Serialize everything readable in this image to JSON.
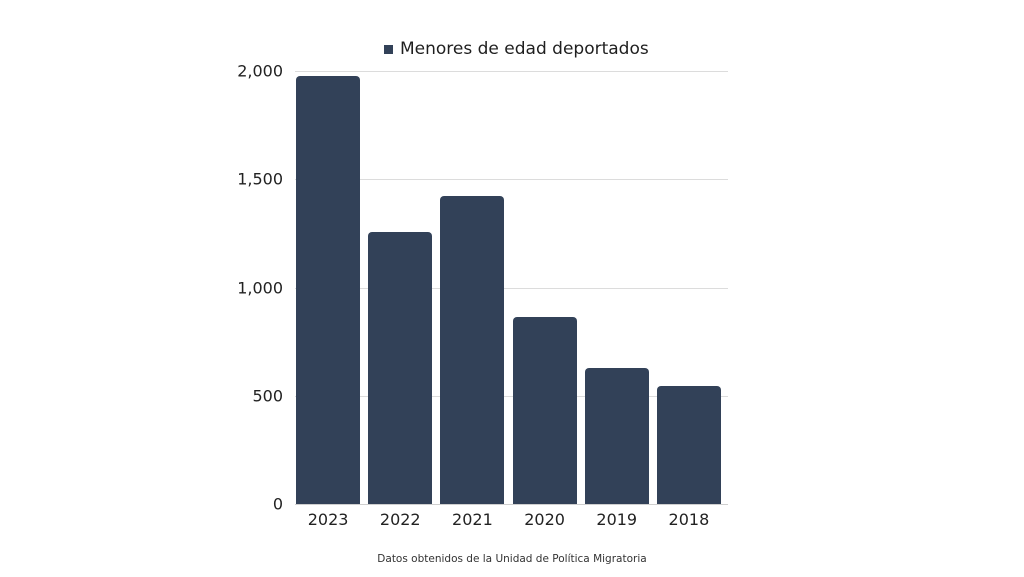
{
  "chart_data": {
    "type": "bar",
    "title": "",
    "categories": [
      "2023",
      "2022",
      "2021",
      "2020",
      "2019",
      "2018"
    ],
    "series": [
      {
        "name": "Menores de edad deportados",
        "values": [
          1977,
          1256,
          1423,
          864,
          628,
          545
        ],
        "color": "#324158"
      }
    ],
    "xlabel": "",
    "ylabel": "",
    "ylim": [
      0,
      2000
    ],
    "yticks": [
      0,
      500,
      1000,
      1500,
      2000
    ],
    "ytick_labels": [
      "0",
      "500",
      "1,000",
      "1,500",
      "2,000"
    ],
    "grid": true,
    "legend_position": "top",
    "annotation": "Datos obtenidos de la Unidad de Política Migratoria"
  },
  "legend": {
    "label": "Menores de edad deportados",
    "color": "#324158"
  },
  "footer": {
    "source": "Datos obtenidos de la Unidad de Política Migratoria"
  }
}
